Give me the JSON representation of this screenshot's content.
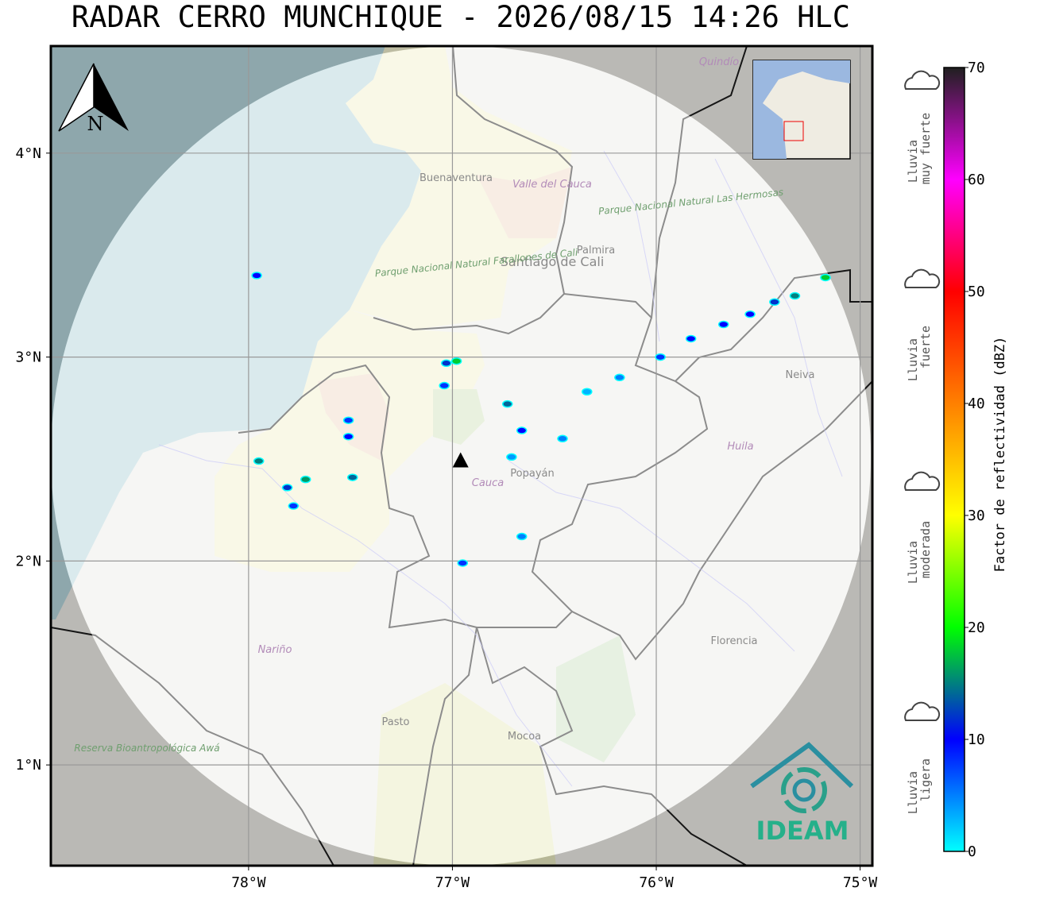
{
  "title": "RADAR CERRO MUNCHIQUE - 2026/08/15 14:26 HLC",
  "map": {
    "xlim": [
      -78.97,
      -74.94
    ],
    "ylim": [
      0.506,
      4.525
    ],
    "xticks": [
      {
        "value": -78,
        "label": "78°W"
      },
      {
        "value": -77,
        "label": "77°W"
      },
      {
        "value": -76,
        "label": "76°W"
      },
      {
        "value": -75,
        "label": "75°W"
      }
    ],
    "yticks": [
      {
        "value": 1,
        "label": "1°N"
      },
      {
        "value": 2,
        "label": "2°N"
      },
      {
        "value": 3,
        "label": "3°N"
      },
      {
        "value": 4,
        "label": "4°N"
      }
    ],
    "grid": true,
    "radar": {
      "lon": -76.96,
      "lat": 2.49
    },
    "north": "N",
    "labels": [
      "Buenaventura",
      "Valle del Cauca",
      "Palmira",
      "Santiago de Cali",
      "Parque Nacional Natural Farallones de Cali",
      "Parque Nacional Natural Las Hermosas",
      "Neiva",
      "Huila",
      "Popayán",
      "Cauca",
      "Nariño",
      "Florencia",
      "Pasto",
      "Mocoa",
      "Reserva Bioantropológica Awá",
      "Quindío"
    ],
    "logo": "IDEAM",
    "echoes": [
      {
        "lon": -77.96,
        "lat": 3.4,
        "dbz": 10
      },
      {
        "lon": -77.03,
        "lat": 2.97,
        "dbz": 12
      },
      {
        "lon": -76.98,
        "lat": 2.98,
        "dbz": 18
      },
      {
        "lon": -77.04,
        "lat": 2.86,
        "dbz": 8
      },
      {
        "lon": -76.73,
        "lat": 2.77,
        "dbz": 14
      },
      {
        "lon": -76.66,
        "lat": 2.64,
        "dbz": 10
      },
      {
        "lon": -76.46,
        "lat": 2.6,
        "dbz": 5
      },
      {
        "lon": -76.71,
        "lat": 2.51,
        "dbz": 4
      },
      {
        "lon": -76.66,
        "lat": 2.12,
        "dbz": 5
      },
      {
        "lon": -76.95,
        "lat": 1.99,
        "dbz": 8
      },
      {
        "lon": -77.51,
        "lat": 2.69,
        "dbz": 8
      },
      {
        "lon": -77.51,
        "lat": 2.61,
        "dbz": 10
      },
      {
        "lon": -77.95,
        "lat": 2.49,
        "dbz": 15
      },
      {
        "lon": -77.81,
        "lat": 2.36,
        "dbz": 12
      },
      {
        "lon": -77.72,
        "lat": 2.4,
        "dbz": 16
      },
      {
        "lon": -77.78,
        "lat": 2.27,
        "dbz": 8
      },
      {
        "lon": -77.49,
        "lat": 2.41,
        "dbz": 14
      },
      {
        "lon": -76.34,
        "lat": 2.83,
        "dbz": 3
      },
      {
        "lon": -76.18,
        "lat": 2.9,
        "dbz": 5
      },
      {
        "lon": -75.98,
        "lat": 3.0,
        "dbz": 8
      },
      {
        "lon": -75.83,
        "lat": 3.09,
        "dbz": 10
      },
      {
        "lon": -75.67,
        "lat": 3.16,
        "dbz": 10
      },
      {
        "lon": -75.54,
        "lat": 3.21,
        "dbz": 10
      },
      {
        "lon": -75.42,
        "lat": 3.27,
        "dbz": 12
      },
      {
        "lon": -75.32,
        "lat": 3.3,
        "dbz": 15
      },
      {
        "lon": -75.17,
        "lat": 3.39,
        "dbz": 18
      }
    ]
  },
  "colorbar": {
    "label": "Factor de reflectividad (dBZ)",
    "lim": [
      0,
      70
    ],
    "ticks": [
      0,
      10,
      20,
      30,
      40,
      50,
      60,
      70
    ],
    "colors": [
      "#00ffff",
      "#0000ff",
      "#00ff00",
      "#ffff00",
      "#ff8000",
      "#ff0000",
      "#ff00ff",
      "#202020"
    ]
  },
  "legend": [
    {
      "lines": [
        "Lluvia",
        "muy fuerte"
      ]
    },
    {
      "lines": [
        "Lluvia",
        "fuerte"
      ]
    },
    {
      "lines": [
        "Lluvia",
        "moderada"
      ]
    },
    {
      "lines": [
        "Lluvia",
        "ligera"
      ]
    }
  ]
}
